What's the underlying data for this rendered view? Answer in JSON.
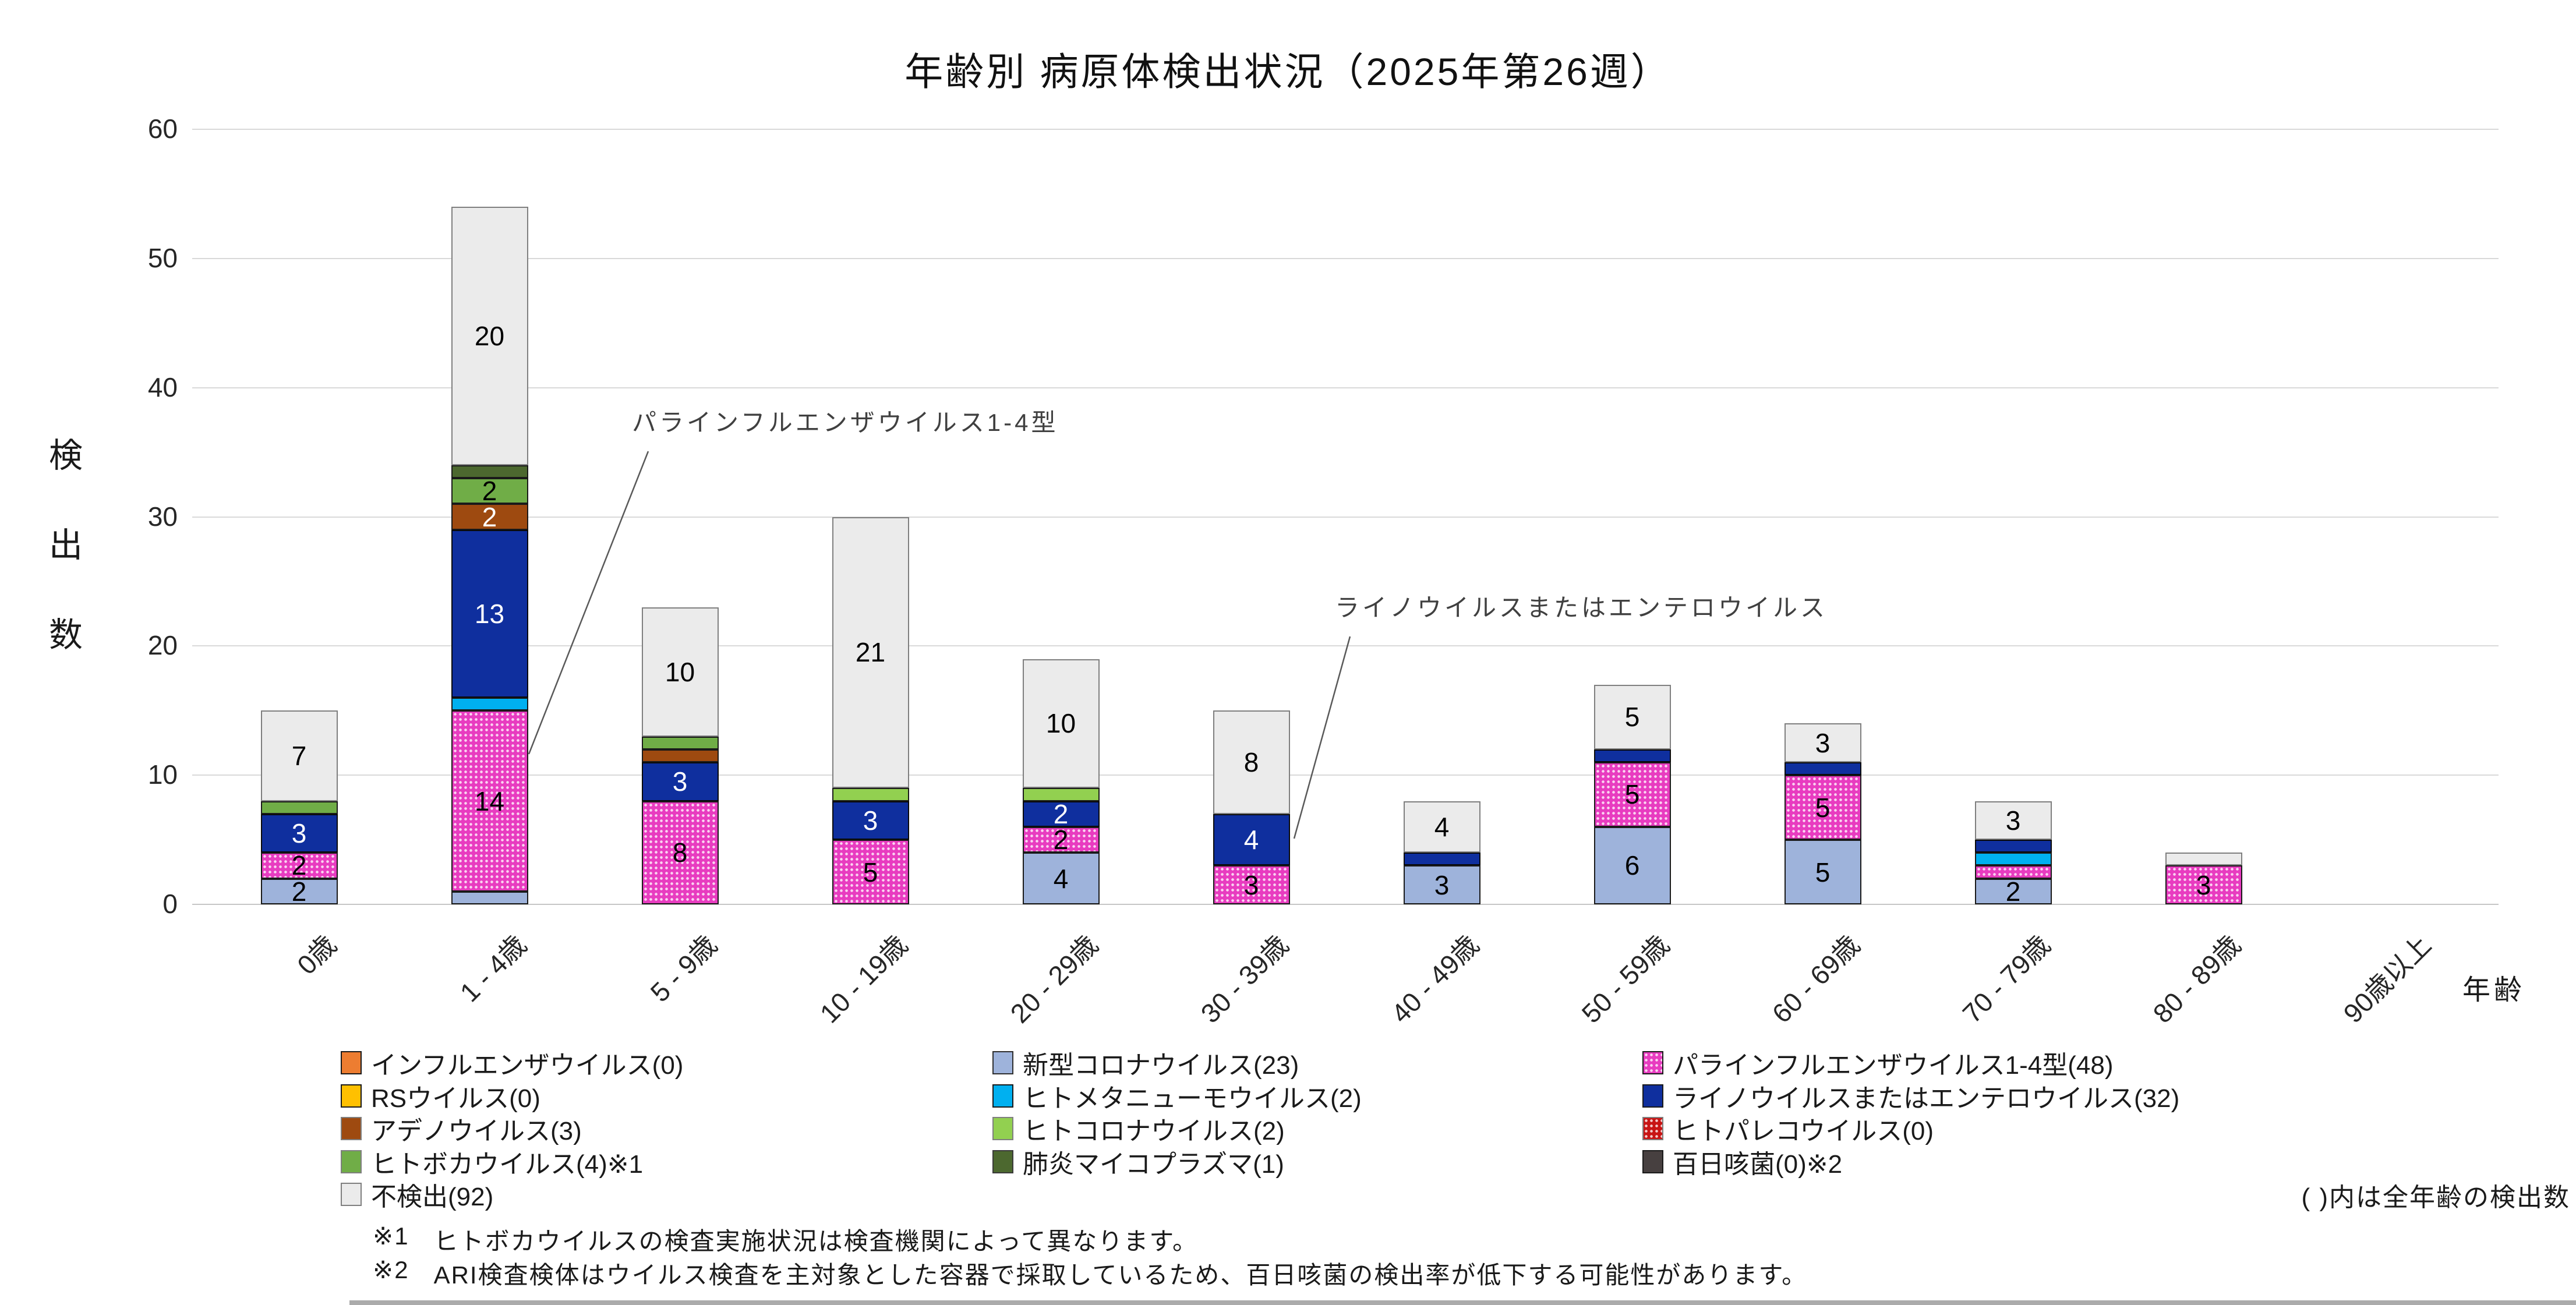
{
  "title": "年齢別 病原体検出状況（2025年第26週）",
  "y_axis": {
    "title_chars": [
      "検",
      "出",
      "数"
    ]
  },
  "x_axis": {
    "title": "年齢"
  },
  "annotations": [
    {
      "text": "パラインフルエンザウイルス1-4型"
    },
    {
      "text": "ライノウイルスまたはエンテロウイルス"
    }
  ],
  "legend": {
    "columns": [
      [
        {
          "label": "インフルエンザウイルス(0)",
          "color": "#ED7D31",
          "border": "#1a1a1a",
          "pattern": false
        },
        {
          "label": "RSウイルス(0)",
          "color": "#FFC000",
          "border": "#1a1a1a",
          "pattern": false
        },
        {
          "label": "アデノウイルス(3)",
          "color": "#9E4A10",
          "border": "#7F7F7F",
          "pattern": false
        },
        {
          "label": "ヒトボカウイルス(4)※1",
          "color": "#70AD47",
          "border": "#7F7F7F",
          "pattern": false
        },
        {
          "label": "不検出(92)",
          "color": "#EBEBEB",
          "border": "#7F7F7F",
          "pattern": false
        }
      ],
      [
        {
          "label": "新型コロナウイルス(23)",
          "color": "#9EB3DB",
          "border": "#2F2F2F",
          "pattern": false
        },
        {
          "label": "ヒトメタニューモウイルス(2)",
          "color": "#00B0F0",
          "border": "#1a1a1a",
          "pattern": false
        },
        {
          "label": "ヒトコロナウイルス(2)",
          "color": "#92D050",
          "border": "#7F7F7F",
          "pattern": false
        },
        {
          "label": "肺炎マイコプラズマ(1)",
          "color": "#4C682F",
          "border": "#3A3A3A",
          "pattern": false
        }
      ],
      [
        {
          "label": "パラインフルエンザウイルス1-4型(48)",
          "color": "#E83CC0",
          "border": "#1a1a1a",
          "pattern": true
        },
        {
          "label": "ライノウイルスまたはエンテロウイルス(32)",
          "color": "#0F2F9E",
          "border": "#1a1a1a",
          "pattern": false
        },
        {
          "label": "ヒトパレコウイルス(0)",
          "color": "#C81414",
          "border": "#7F7F7F",
          "pattern": true
        },
        {
          "label": "百日咳菌(0)※2",
          "color": "#474040",
          "border": "#1a1a1a",
          "pattern": false
        }
      ]
    ]
  },
  "notes": {
    "paren_note": "( )内は全年齢の検出数",
    "footnotes": [
      {
        "mark": "※1",
        "text": "ヒトボカウイルスの検査実施状況は検査機関によって異なります。"
      },
      {
        "mark": "※2",
        "text": "ARI検査検体はウイルス検査を主対象とした容器で採取しているため、百日咳菌の検出率が低下する可能性があります。"
      }
    ]
  },
  "chart_data": {
    "type": "bar",
    "stacked": true,
    "title": "年齢別 病原体検出状況（2025年第26週）",
    "xlabel": "年齢",
    "ylabel": "検出数",
    "ylim": [
      0,
      60
    ],
    "y_ticks": [
      0,
      10,
      20,
      30,
      40,
      50,
      60
    ],
    "grid": true,
    "legend_position": "bottom",
    "categories": [
      "0歳",
      "1 - 4歳",
      "5 - 9歳",
      "10 - 19歳",
      "20 - 29歳",
      "30 - 39歳",
      "40 - 49歳",
      "50 - 59歳",
      "60 - 69歳",
      "70 - 79歳",
      "80 - 89歳",
      "90歳以上"
    ],
    "series": [
      {
        "name": "インフルエンザウイルス",
        "total": 0,
        "color": "#ED7D31",
        "border": "#1a1a1a",
        "pattern": false,
        "labelColor": "#000000",
        "values": [
          0,
          0,
          0,
          0,
          0,
          0,
          0,
          0,
          0,
          0,
          0,
          0
        ]
      },
      {
        "name": "RSウイルス",
        "total": 0,
        "color": "#FFC000",
        "border": "#1a1a1a",
        "pattern": false,
        "labelColor": "#000000",
        "values": [
          0,
          0,
          0,
          0,
          0,
          0,
          0,
          0,
          0,
          0,
          0,
          0
        ]
      },
      {
        "name": "新型コロナウイルス",
        "total": 23,
        "color": "#9EB3DB",
        "border": "#1a1a1a",
        "pattern": false,
        "labelColor": "#000000",
        "values": [
          2,
          1,
          0,
          0,
          4,
          0,
          3,
          6,
          5,
          2,
          0,
          0
        ]
      },
      {
        "name": "パラインフルエンザウイルス1-4型",
        "total": 48,
        "color": "#E83CC0",
        "border": "#1a1a1a",
        "pattern": true,
        "labelColor": "#000000",
        "values": [
          2,
          14,
          8,
          5,
          2,
          3,
          0,
          5,
          5,
          1,
          3,
          0
        ]
      },
      {
        "name": "ヒトメタニューモウイルス",
        "total": 2,
        "color": "#00B0F0",
        "border": "#1a1a1a",
        "pattern": false,
        "labelColor": "#000000",
        "values": [
          0,
          1,
          0,
          0,
          0,
          0,
          0,
          0,
          0,
          1,
          0,
          0
        ]
      },
      {
        "name": "ライノウイルスまたはエンテロウイルス",
        "total": 32,
        "color": "#0F2F9E",
        "border": "#0a0a0a",
        "pattern": false,
        "labelColor": "#ffffff",
        "values": [
          3,
          13,
          3,
          3,
          2,
          4,
          1,
          1,
          1,
          1,
          0,
          0
        ]
      },
      {
        "name": "アデノウイルス",
        "total": 3,
        "color": "#9E4A10",
        "border": "#1a1a1a",
        "pattern": false,
        "labelColor": "#ffffff",
        "values": [
          0,
          2,
          1,
          0,
          0,
          0,
          0,
          0,
          0,
          0,
          0,
          0
        ]
      },
      {
        "name": "ヒトコロナウイルス",
        "total": 2,
        "color": "#92D050",
        "border": "#1a1a1a",
        "pattern": false,
        "labelColor": "#000000",
        "values": [
          0,
          0,
          0,
          1,
          1,
          0,
          0,
          0,
          0,
          0,
          0,
          0
        ]
      },
      {
        "name": "ヒトパレコウイルス",
        "total": 0,
        "color": "#C81414",
        "border": "#1a1a1a",
        "pattern": true,
        "labelColor": "#ffffff",
        "values": [
          0,
          0,
          0,
          0,
          0,
          0,
          0,
          0,
          0,
          0,
          0,
          0
        ]
      },
      {
        "name": "ヒトボカウイルス",
        "total": 4,
        "color": "#70AD47",
        "border": "#1a1a1a",
        "pattern": false,
        "labelColor": "#000000",
        "values": [
          1,
          2,
          1,
          0,
          0,
          0,
          0,
          0,
          0,
          0,
          0,
          0
        ]
      },
      {
        "name": "肺炎マイコプラズマ",
        "total": 1,
        "color": "#4C682F",
        "border": "#1a1a1a",
        "pattern": false,
        "labelColor": "#ffffff",
        "values": [
          0,
          1,
          0,
          0,
          0,
          0,
          0,
          0,
          0,
          0,
          0,
          0
        ]
      },
      {
        "name": "百日咳菌",
        "total": 0,
        "color": "#474040",
        "border": "#1a1a1a",
        "pattern": false,
        "labelColor": "#ffffff",
        "values": [
          0,
          0,
          0,
          0,
          0,
          0,
          0,
          0,
          0,
          0,
          0,
          0
        ]
      },
      {
        "name": "不検出",
        "total": 92,
        "color": "#EBEBEB",
        "border": "#7F7F7F",
        "pattern": false,
        "labelColor": "#000000",
        "values": [
          7,
          20,
          10,
          21,
          10,
          8,
          4,
          5,
          3,
          3,
          1,
          0
        ]
      }
    ]
  }
}
